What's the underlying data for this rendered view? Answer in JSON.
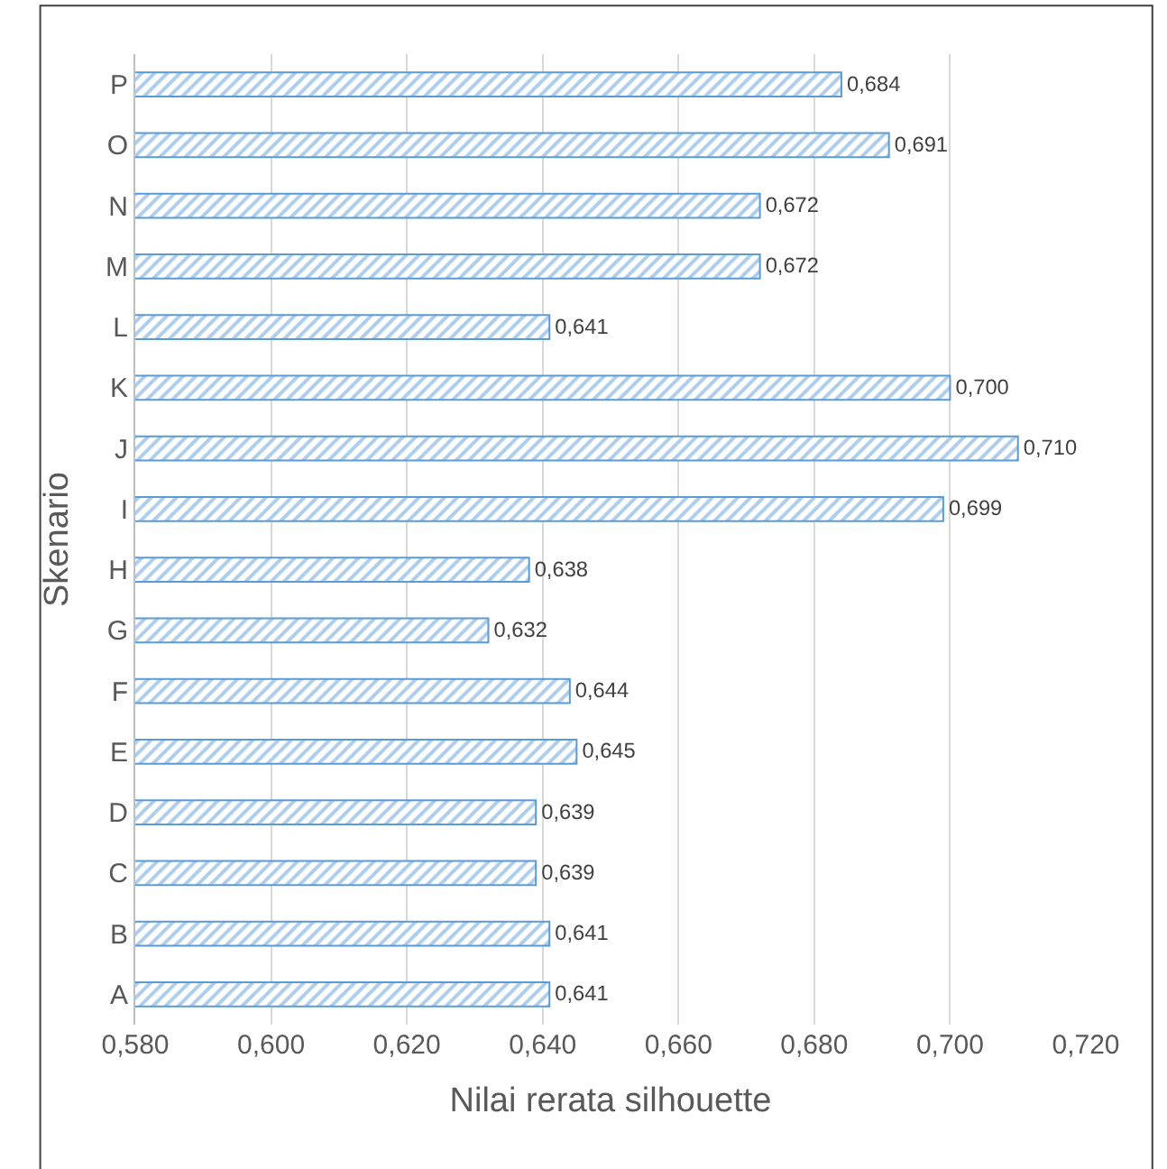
{
  "chart_data": {
    "type": "bar",
    "orientation": "horizontal",
    "xlabel": "Nilai rerata silhouette",
    "ylabel": "Skenario",
    "categories": [
      "P",
      "O",
      "N",
      "M",
      "L",
      "K",
      "J",
      "I",
      "H",
      "G",
      "F",
      "E",
      "D",
      "C",
      "B",
      "A"
    ],
    "values": [
      0.684,
      0.691,
      0.672,
      0.672,
      0.641,
      0.7,
      0.71,
      0.699,
      0.638,
      0.632,
      0.644,
      0.645,
      0.639,
      0.639,
      0.641,
      0.641
    ],
    "value_labels": [
      "0,684",
      "0,691",
      "0,672",
      "0,672",
      "0,641",
      "0,700",
      "0,710",
      "0,699",
      "0,638",
      "0,632",
      "0,644",
      "0,645",
      "0,639",
      "0,639",
      "0,641",
      "0,641"
    ],
    "color": "#5b9bd5",
    "xlim": [
      0.58,
      0.72
    ],
    "xticks": [
      {
        "value": 0.58,
        "label": "0,580"
      },
      {
        "value": 0.6,
        "label": "0,600"
      },
      {
        "value": 0.62,
        "label": "0,620"
      },
      {
        "value": 0.64,
        "label": "0,640"
      },
      {
        "value": 0.66,
        "label": "0,660"
      },
      {
        "value": 0.68,
        "label": "0,680"
      },
      {
        "value": 0.7,
        "label": "0,700"
      },
      {
        "value": 0.72,
        "label": "0,720"
      }
    ],
    "grid": "x"
  }
}
